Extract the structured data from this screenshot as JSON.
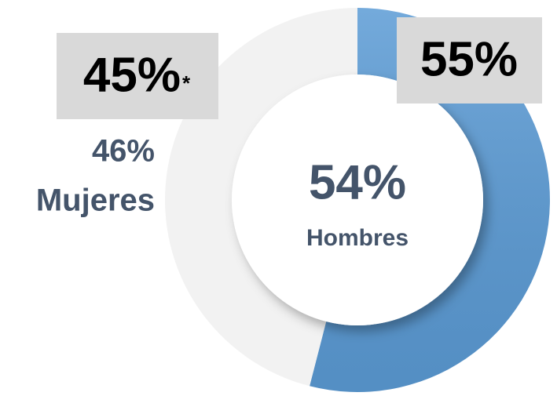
{
  "chart_data": {
    "type": "pie",
    "donut": true,
    "categories": [
      "Hombres",
      "Mujeres"
    ],
    "values": [
      54,
      46
    ],
    "value_labels": [
      "54%",
      "46%"
    ],
    "colors": [
      "#5b9bd5",
      "#f2f2f2"
    ],
    "annotations": [
      "55%",
      "45%",
      "*"
    ]
  }
}
